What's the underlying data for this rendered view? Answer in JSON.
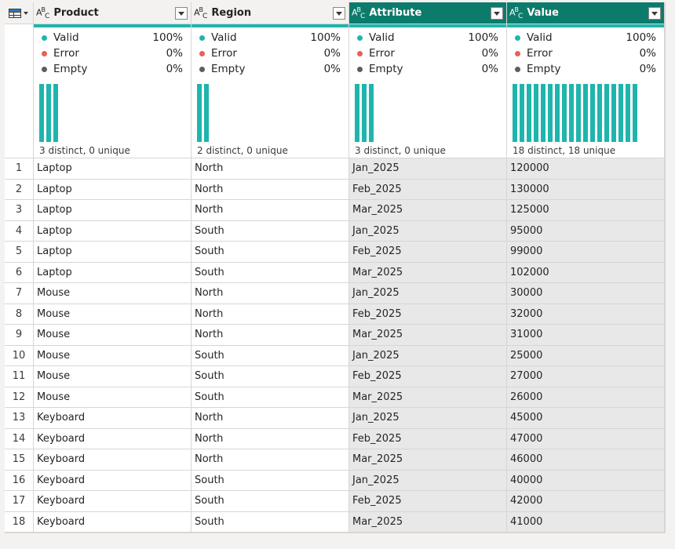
{
  "columns": [
    {
      "name": "Product",
      "type_label": "ABC",
      "valid": "100%",
      "error": "0%",
      "empty": "0%",
      "distinct": "3 distinct, 0 unique",
      "bar_count": 3
    },
    {
      "name": "Region",
      "type_label": "ABC",
      "valid": "100%",
      "error": "0%",
      "empty": "0%",
      "distinct": "2 distinct, 0 unique",
      "bar_count": 2
    },
    {
      "name": "Attribute",
      "type_label": "ABC",
      "valid": "100%",
      "error": "0%",
      "empty": "0%",
      "distinct": "3 distinct, 0 unique",
      "bar_count": 3
    },
    {
      "name": "Value",
      "type_label": "ABC",
      "valid": "100%",
      "error": "0%",
      "empty": "0%",
      "distinct": "18 distinct, 18 unique",
      "bar_count": 18
    }
  ],
  "labels": {
    "valid": "Valid",
    "error": "Error",
    "empty": "Empty"
  },
  "colors": {
    "valid": "#1fb5ad",
    "error": "#e8605a",
    "empty": "#605e5c",
    "selected_header": "#0d7b6c"
  },
  "rows": [
    [
      "1",
      "Laptop",
      "North",
      "Jan_2025",
      "120000"
    ],
    [
      "2",
      "Laptop",
      "North",
      "Feb_2025",
      "130000"
    ],
    [
      "3",
      "Laptop",
      "North",
      "Mar_2025",
      "125000"
    ],
    [
      "4",
      "Laptop",
      "South",
      "Jan_2025",
      "95000"
    ],
    [
      "5",
      "Laptop",
      "South",
      "Feb_2025",
      "99000"
    ],
    [
      "6",
      "Laptop",
      "South",
      "Mar_2025",
      "102000"
    ],
    [
      "7",
      "Mouse",
      "North",
      "Jan_2025",
      "30000"
    ],
    [
      "8",
      "Mouse",
      "North",
      "Feb_2025",
      "32000"
    ],
    [
      "9",
      "Mouse",
      "North",
      "Mar_2025",
      "31000"
    ],
    [
      "10",
      "Mouse",
      "South",
      "Jan_2025",
      "25000"
    ],
    [
      "11",
      "Mouse",
      "South",
      "Feb_2025",
      "27000"
    ],
    [
      "12",
      "Mouse",
      "South",
      "Mar_2025",
      "26000"
    ],
    [
      "13",
      "Keyboard",
      "North",
      "Jan_2025",
      "45000"
    ],
    [
      "14",
      "Keyboard",
      "North",
      "Feb_2025",
      "47000"
    ],
    [
      "15",
      "Keyboard",
      "North",
      "Mar_2025",
      "46000"
    ],
    [
      "16",
      "Keyboard",
      "South",
      "Jan_2025",
      "40000"
    ],
    [
      "17",
      "Keyboard",
      "South",
      "Feb_2025",
      "42000"
    ],
    [
      "18",
      "Keyboard",
      "South",
      "Mar_2025",
      "41000"
    ]
  ]
}
